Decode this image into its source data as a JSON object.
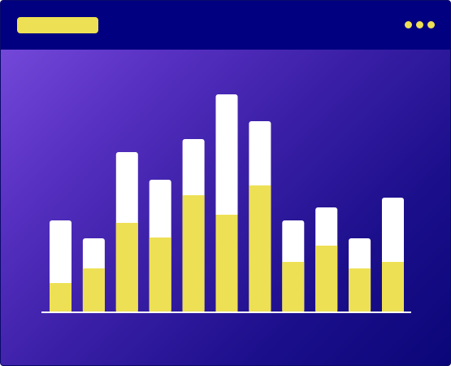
{
  "colors": {
    "titlebar": "#000080",
    "accent": "#ede055",
    "bar_total": "#ffffff",
    "axis": "#ffffff"
  },
  "titlebar": {
    "title_placeholder": "",
    "menu_icon": "more-dots-icon"
  },
  "chart_data": {
    "type": "bar",
    "stacked": true,
    "categories": [
      "",
      "",
      "",
      "",
      "",
      "",
      "",
      "",
      "",
      "",
      ""
    ],
    "series": [
      {
        "values": [
          36,
          54,
          110,
          92,
          144,
          120,
          156,
          62,
          82,
          54,
          62
        ],
        "color": "#ede055"
      },
      {
        "values": [
          77,
          37,
          87,
          71,
          69,
          148,
          79,
          51,
          47,
          37,
          79
        ],
        "color": "#ffffff"
      }
    ],
    "ylim": [
      0,
      268
    ],
    "grid": false,
    "legend": "none"
  }
}
